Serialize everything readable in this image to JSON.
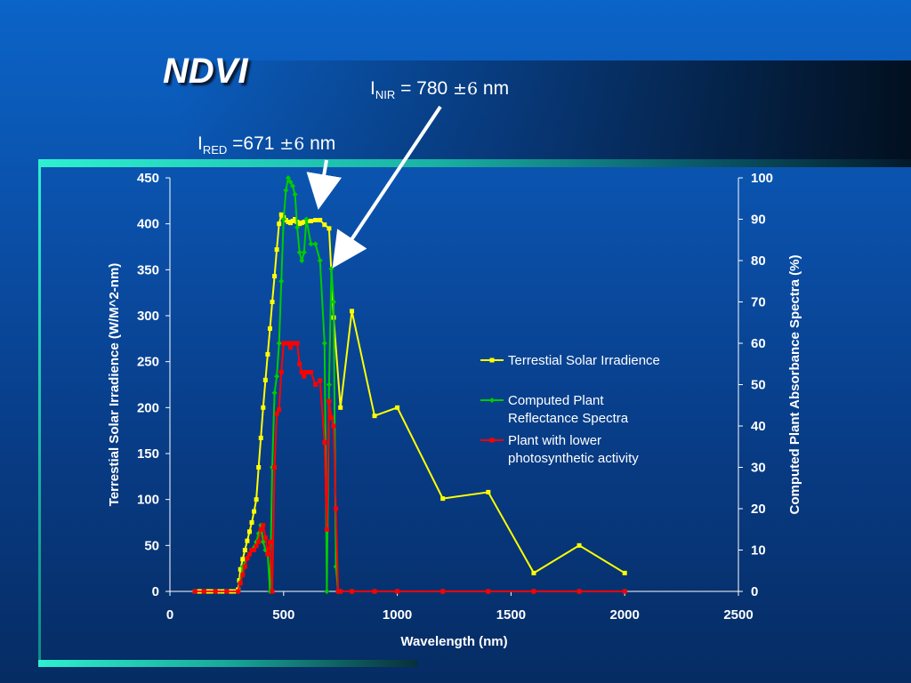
{
  "slide": {
    "title": "NDVI",
    "annotation_nir": {
      "prefix": "I",
      "sub": "NIR",
      "text": " = 780 ",
      "pm": "±6",
      "unit": " nm"
    },
    "annotation_red": {
      "prefix": "I",
      "sub": "RED",
      "text": " =671 ",
      "pm": "±6",
      "unit": " nm"
    }
  },
  "colors": {
    "solar": "#ffff00",
    "reflectance": "#00cc00",
    "low_activity": "#ff0000",
    "axis": "#ffffff"
  },
  "chart_data": {
    "type": "line",
    "xlabel": "Wavelength (nm)",
    "ylabel": "Terrestial Solar Irradience (W/M^2-nm)",
    "y2label": "Computed Plant Absorbance Spectra (%)",
    "xlim": [
      0,
      2500
    ],
    "ylim": [
      0,
      450
    ],
    "y2lim": [
      0,
      100
    ],
    "xticks": [
      "0",
      "500",
      "1000",
      "1500",
      "2000",
      "2500"
    ],
    "yticks": [
      "0",
      "50",
      "100",
      "150",
      "200",
      "250",
      "300",
      "350",
      "400",
      "450"
    ],
    "y2ticks": [
      "0",
      "10",
      "20",
      "30",
      "40",
      "50",
      "60",
      "70",
      "80",
      "90",
      "100"
    ],
    "legend_position": "right-middle",
    "series": [
      {
        "name": "Terrestial Solar Irradience",
        "axis": "left",
        "x": [
          110,
          130,
          150,
          170,
          190,
          210,
          230,
          250,
          270,
          290,
          300,
          305,
          310,
          320,
          330,
          340,
          350,
          360,
          370,
          380,
          390,
          400,
          410,
          420,
          430,
          440,
          450,
          460,
          470,
          480,
          490,
          500,
          510,
          520,
          530,
          540,
          550,
          560,
          570,
          580,
          590,
          600,
          620,
          640,
          660,
          680,
          700,
          720,
          750,
          800,
          900,
          1000,
          1200,
          1400,
          1600,
          1800,
          2000
        ],
        "y": [
          0,
          0,
          0,
          0,
          0,
          0,
          0,
          0,
          0,
          0,
          2,
          12,
          24,
          35,
          45,
          55,
          65,
          75,
          87,
          100,
          135,
          167,
          200,
          230,
          258,
          286,
          315,
          343,
          372,
          400,
          410,
          407,
          404,
          402,
          401,
          403,
          405,
          402,
          400,
          401,
          402,
          403,
          403,
          404,
          404,
          399,
          395,
          298,
          200,
          305,
          191,
          200,
          101,
          108,
          20,
          50,
          20
        ]
      },
      {
        "name": "Computed Plant Reflectance Spectra",
        "axis": "right",
        "x": [
          110,
          150,
          200,
          250,
          300,
          320,
          340,
          360,
          380,
          390,
          400,
          410,
          420,
          430,
          440,
          450,
          460,
          470,
          480,
          490,
          500,
          510,
          520,
          530,
          540,
          550,
          560,
          570,
          580,
          590,
          600,
          620,
          640,
          660,
          680,
          690,
          700,
          710,
          720,
          730,
          740,
          750,
          800,
          900,
          1000,
          1200,
          1400,
          1600,
          1800,
          2000
        ],
        "y": [
          0,
          0,
          0,
          0,
          0,
          6,
          8,
          10,
          12,
          14,
          16,
          12,
          10,
          9,
          0,
          30,
          48,
          52,
          60,
          75,
          90,
          97,
          100,
          99,
          98,
          96,
          88,
          82,
          80,
          82,
          90,
          84,
          84,
          80,
          60,
          0,
          50,
          78,
          70,
          6,
          0,
          0,
          0,
          0,
          0,
          0,
          0,
          0,
          0,
          0
        ]
      },
      {
        "name": "Plant with lower photosynthetic activity",
        "axis": "right",
        "x": [
          110,
          150,
          200,
          250,
          300,
          310,
          320,
          330,
          340,
          350,
          360,
          370,
          380,
          390,
          400,
          410,
          420,
          430,
          440,
          450,
          460,
          470,
          480,
          490,
          500,
          510,
          520,
          530,
          540,
          550,
          560,
          570,
          580,
          590,
          600,
          620,
          640,
          660,
          680,
          690,
          700,
          710,
          720,
          730,
          740,
          750,
          800,
          900,
          1000,
          1200,
          1400,
          1600,
          1800,
          2000
        ],
        "y": [
          0,
          0,
          0,
          0,
          0,
          2,
          4,
          6,
          8,
          9,
          10,
          10,
          11,
          12,
          15,
          16,
          13,
          9,
          12,
          0,
          30,
          43,
          44,
          53,
          60,
          60,
          60,
          59,
          60,
          60,
          60,
          55,
          53,
          52,
          53,
          53,
          50,
          51,
          36,
          15,
          46,
          42,
          40,
          20,
          0,
          0,
          0,
          0,
          0,
          0,
          0,
          0,
          0,
          0
        ]
      }
    ]
  }
}
